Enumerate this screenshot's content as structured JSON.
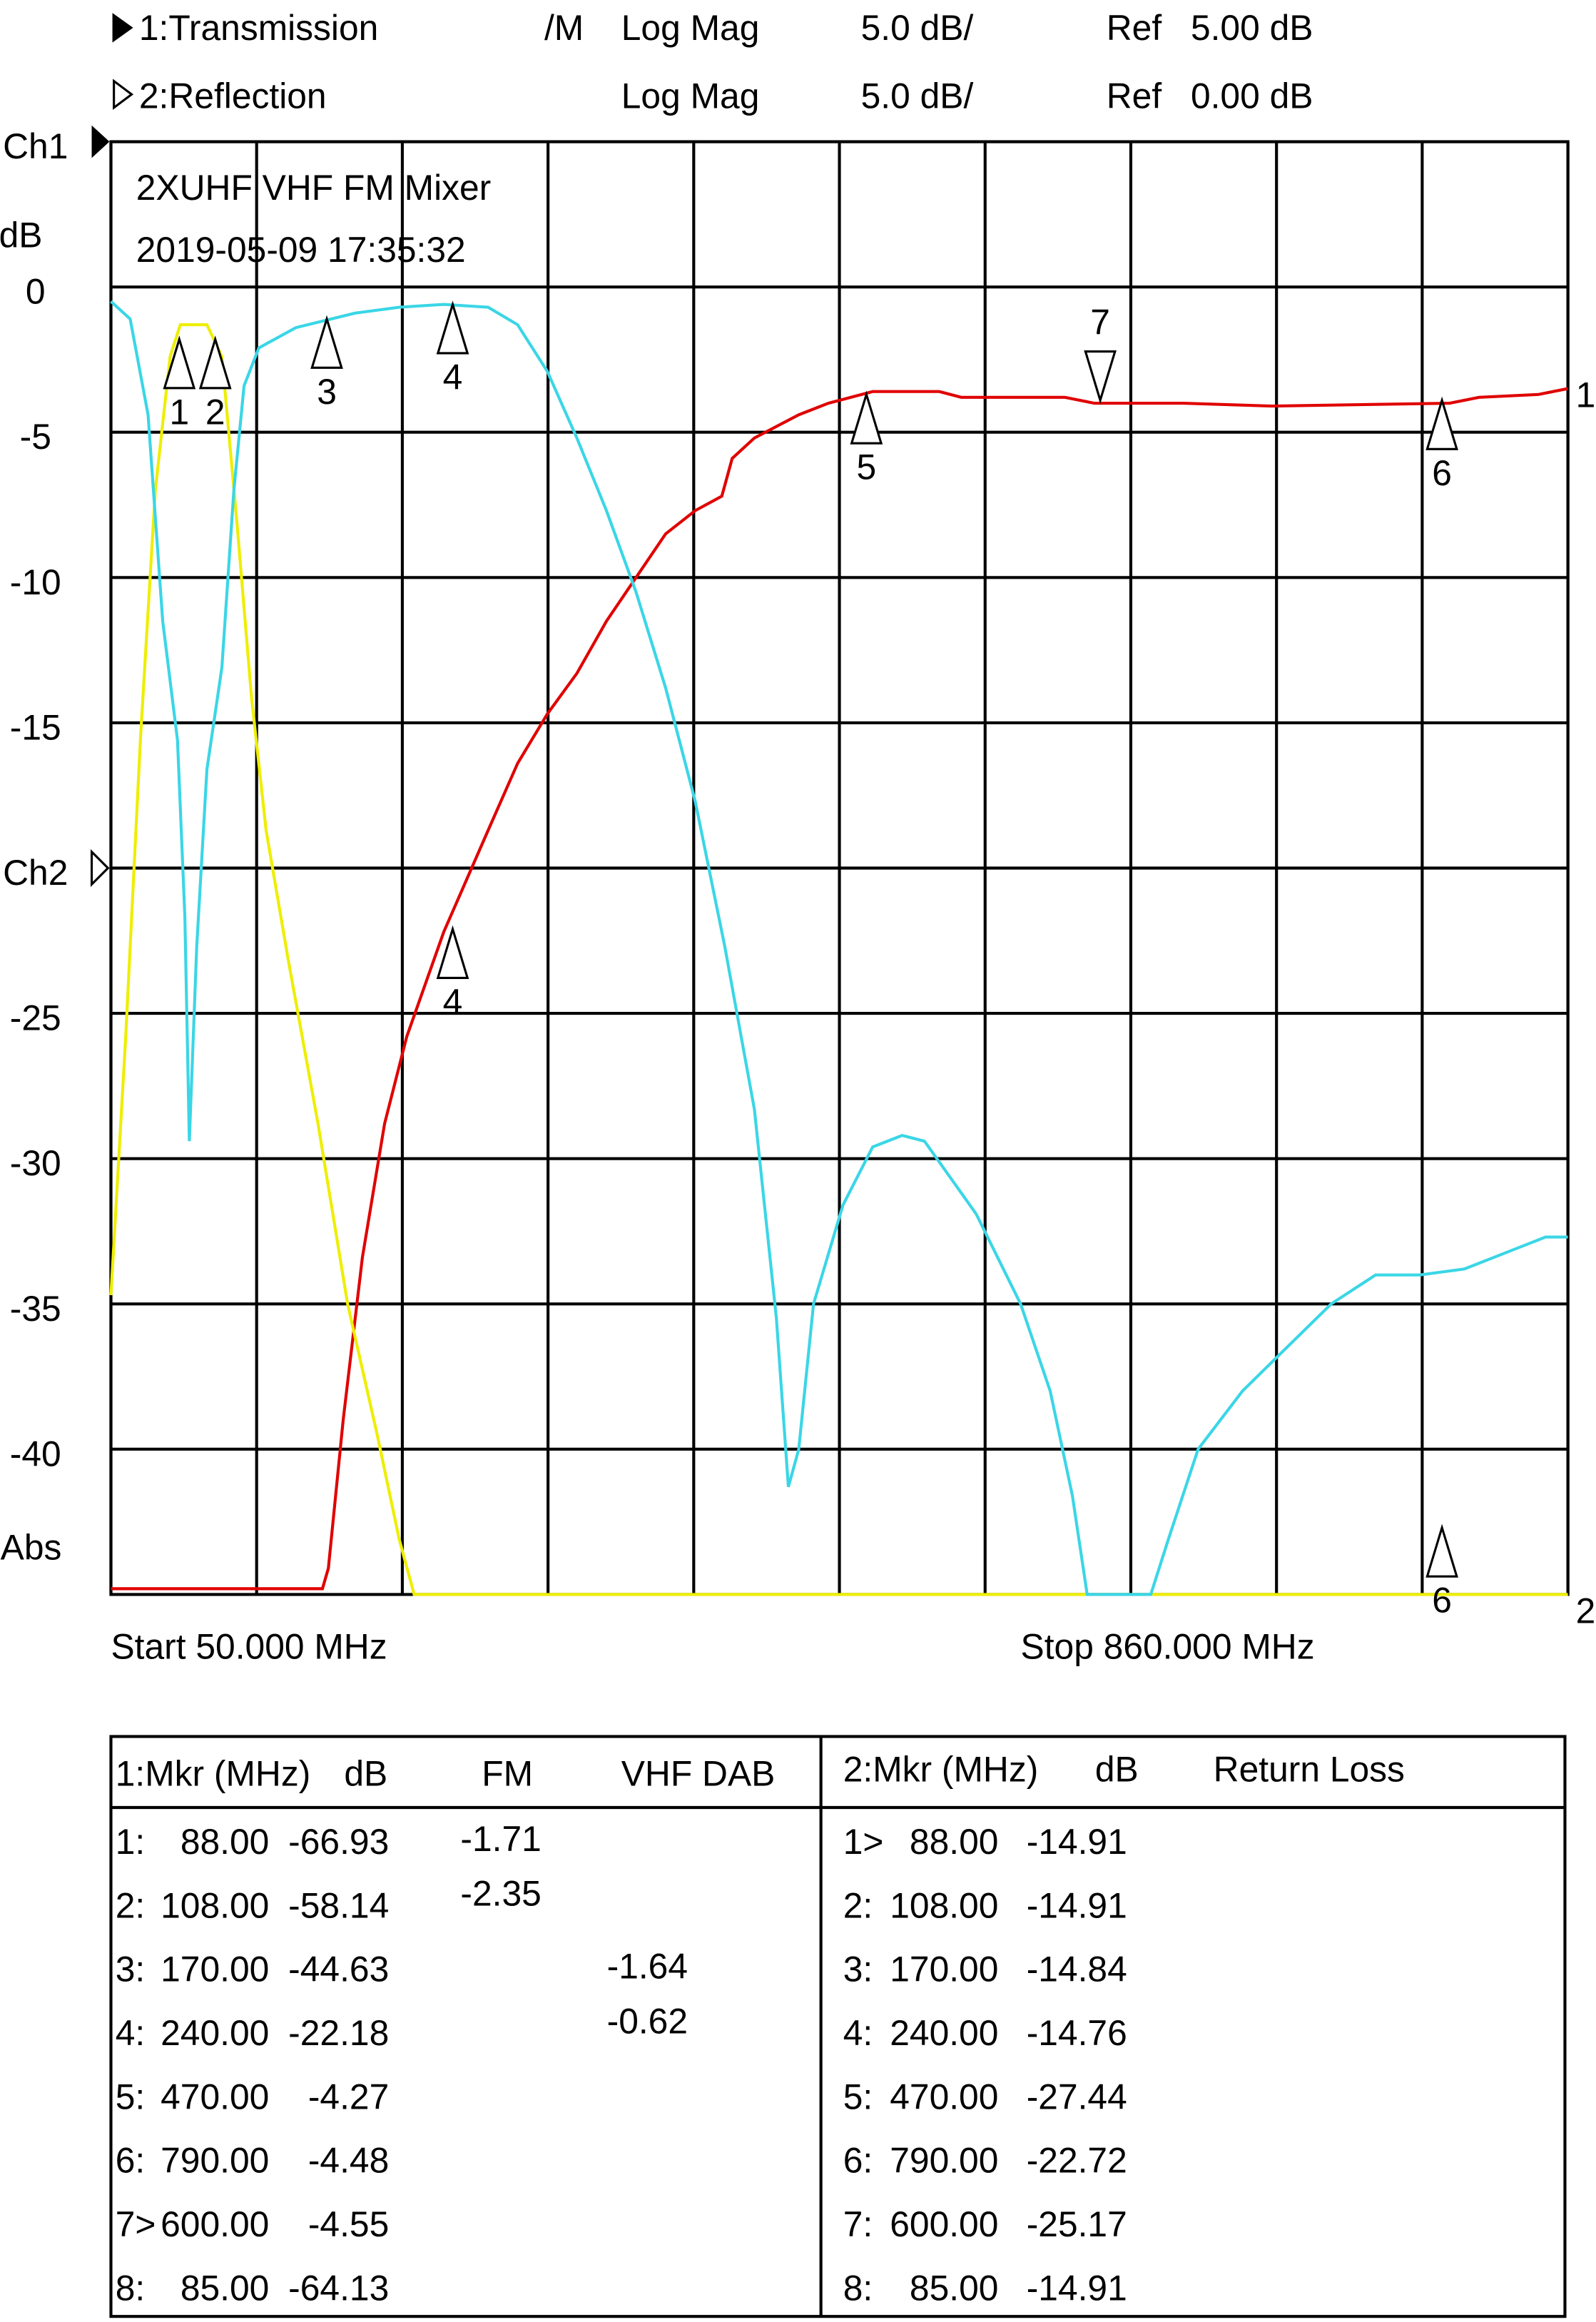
{
  "header": {
    "channels": [
      {
        "name": "1:Transmission",
        "mode": "/M",
        "format": "Log Mag",
        "scale": "5.0 dB/",
        "ref_label": "Ref",
        "ref": "5.00 dB"
      },
      {
        "name": "2:Reflection",
        "format": "Log Mag",
        "scale": "5.0 dB/",
        "ref_label": "Ref",
        "ref": "0.00 dB"
      }
    ]
  },
  "chart_data": {
    "type": "line",
    "title": "2XUHF VHF FM Mixer",
    "subtitle": "2019-05-09 17:35:32",
    "ylabel": "dB",
    "abs_label": "Abs",
    "start_label": "Start 50.000 MHz",
    "stop_label": "Stop 860.000 MHz",
    "xlim": [
      50,
      860
    ],
    "xgrid": [
      50,
      131,
      212,
      293,
      374,
      455,
      536,
      617,
      698,
      779,
      860
    ],
    "ylim": [
      -45,
      5
    ],
    "yticks": [
      {
        "value": 5,
        "label": "Ch1"
      },
      0,
      -5,
      -10,
      -15,
      {
        "value": -20,
        "label": "Ch2"
      },
      -25,
      -30,
      -35,
      -40
    ],
    "grid": true,
    "trace_labels": [
      "1",
      "2"
    ],
    "series": [
      {
        "color": "#e00000",
        "x": [
          50,
          167.6,
          170.9,
          179.1,
          189.8,
          202.1,
          214.5,
          235.0,
          259.7,
          276.1,
          292.6,
          309.0,
          325.5,
          341.9,
          358.4,
          374.8,
          389.6,
          395.4,
          407.7,
          432.4,
          448.8,
          473.5,
          510.5,
          522.8,
          580.4,
          596.8,
          646.2,
          695.5,
          794.2,
          810.6,
          843.5,
          860
        ],
        "values": [
          -44.8,
          -44.8,
          -44.1,
          -39.0,
          -33.4,
          -28.8,
          -25.8,
          -22.2,
          -18.7,
          -16.4,
          -14.7,
          -13.3,
          -11.5,
          -10.0,
          -8.5,
          -7.7,
          -7.2,
          -5.9,
          -5.2,
          -4.4,
          -4.0,
          -3.6,
          -3.6,
          -3.8,
          -3.8,
          -4.0,
          -4.0,
          -4.1,
          -4.0,
          -3.8,
          -3.7,
          -3.5
        ]
      },
      {
        "color": "#eeee00",
        "x": [
          50,
          58.2,
          66.4,
          74.7,
          82.9,
          88.6,
          103.4,
          111.7,
          119.9,
          128.1,
          136.3,
          148.7,
          165.1,
          181.6,
          198.0,
          210.3,
          218.6,
          860
        ],
        "values": [
          -34.7,
          -25.8,
          -15.6,
          -7.0,
          -2.4,
          -1.3,
          -1.3,
          -2.4,
          -8.0,
          -14.1,
          -18.7,
          -23.2,
          -28.8,
          -35.0,
          -39.5,
          -43.1,
          -45.0,
          -45.0
        ]
      },
      {
        "color": "#3ad6e6",
        "x": [
          50.0,
          60.7,
          70.6,
          78.8,
          87.0,
          91.1,
          93.6,
          97.7,
          103.4,
          111.7,
          118.3,
          124.0,
          132.2,
          152.8,
          185.7,
          210.3,
          235.0,
          259.7,
          276.1,
          292.6,
          309.0,
          325.5,
          341.9,
          358.4,
          374.8,
          391.3,
          407.7,
          420.0,
          426.6,
          432.4,
          440.6,
          457.0,
          473.5,
          489.9,
          502.3,
          531.0,
          555.7,
          572.2,
          584.5,
          592.7,
          628.1,
          637.9,
          654.4,
          679.1,
          703.7,
          728.4,
          753.1,
          777.7,
          802.4,
          827.1,
          847.6,
          860
        ],
        "values": [
          -0.5,
          -1.1,
          -4.4,
          -11.5,
          -15.6,
          -21.7,
          -29.4,
          -22.7,
          -16.6,
          -13.1,
          -7.0,
          -3.4,
          -2.1,
          -1.4,
          -0.9,
          -0.7,
          -0.6,
          -0.7,
          -1.3,
          -2.9,
          -5.2,
          -7.7,
          -10.5,
          -13.8,
          -17.7,
          -22.7,
          -28.3,
          -35.5,
          -41.3,
          -40.0,
          -35.0,
          -31.6,
          -29.6,
          -29.2,
          -29.4,
          -31.9,
          -35.0,
          -38.0,
          -41.6,
          -45.0,
          -45.0,
          -43.1,
          -40.0,
          -38.0,
          -36.5,
          -35.0,
          -34.0,
          -34.0,
          -33.8,
          -33.2,
          -32.7,
          -32.7
        ]
      }
    ],
    "markers": [
      {
        "label": "1",
        "x": 88,
        "y": -1.8
      },
      {
        "label": "2",
        "x": 108,
        "y": -1.8
      },
      {
        "label": "3",
        "x": 170,
        "y": -1.1
      },
      {
        "label": "4",
        "x": 240,
        "y": -0.6
      },
      {
        "label": "5",
        "x": 470,
        "y": -3.7
      },
      {
        "label": "6",
        "x": 790,
        "y": -3.9
      },
      {
        "label": "7",
        "x": 600,
        "y": -3.9,
        "inverted": true
      },
      {
        "label": "4",
        "x": 240,
        "y": -22.1
      },
      {
        "label": "6",
        "x": 790,
        "y": -42.7
      }
    ]
  },
  "table": {
    "left_header": [
      "1:Mkr (MHz)",
      "dB",
      "FM",
      "VHF DAB"
    ],
    "right_header": [
      "2:Mkr (MHz)",
      "dB",
      "Return Loss"
    ],
    "left_rows": [
      {
        "id": "1:",
        "mhz": "88.00",
        "db": "-66.93",
        "fm": "-1.71"
      },
      {
        "id": "2:",
        "mhz": "108.00",
        "db": "-58.14",
        "fm": "-2.35"
      },
      {
        "id": "3:",
        "mhz": "170.00",
        "db": "-44.63",
        "dab": "-1.64"
      },
      {
        "id": "4:",
        "mhz": "240.00",
        "db": "-22.18",
        "dab": "-0.62"
      },
      {
        "id": "5:",
        "mhz": "470.00",
        "db": "-4.27"
      },
      {
        "id": "6:",
        "mhz": "790.00",
        "db": "-4.48"
      },
      {
        "id": "7>",
        "mhz": "600.00",
        "db": "-4.55"
      },
      {
        "id": "8:",
        "mhz": "85.00",
        "db": "-64.13"
      }
    ],
    "right_rows": [
      {
        "id": "1>",
        "mhz": "88.00",
        "db": "-14.91"
      },
      {
        "id": "2:",
        "mhz": "108.00",
        "db": "-14.91"
      },
      {
        "id": "3:",
        "mhz": "170.00",
        "db": "-14.84"
      },
      {
        "id": "4:",
        "mhz": "240.00",
        "db": "-14.76"
      },
      {
        "id": "5:",
        "mhz": "470.00",
        "db": "-27.44"
      },
      {
        "id": "6:",
        "mhz": "790.00",
        "db": "-22.72"
      },
      {
        "id": "7:",
        "mhz": "600.00",
        "db": "-25.17"
      },
      {
        "id": "8:",
        "mhz": "85.00",
        "db": "-14.91"
      }
    ]
  }
}
